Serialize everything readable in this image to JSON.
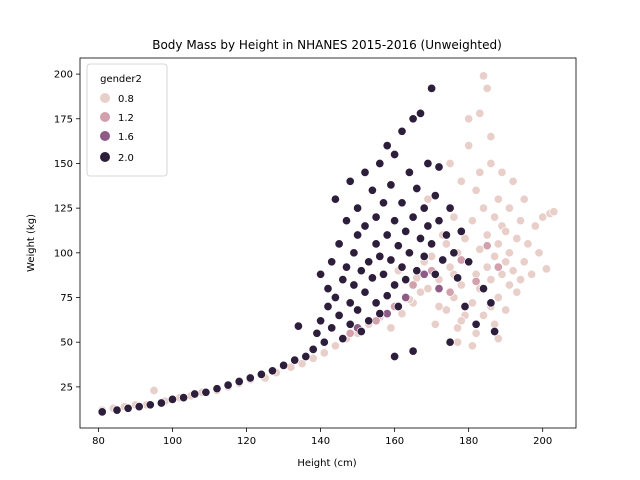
{
  "chart_data": {
    "type": "scatter",
    "title": "Body Mass by Height in NHANES 2015-2016 (Unweighted)",
    "xlabel": "Height (cm)",
    "ylabel": "Weight (kg)",
    "xlim": [
      75,
      209
    ],
    "ylim": [
      2,
      209
    ],
    "xticks": [
      80,
      100,
      120,
      140,
      160,
      180,
      200
    ],
    "yticks": [
      25,
      50,
      75,
      100,
      125,
      150,
      175,
      200
    ],
    "grid": false,
    "legend": {
      "title": "gender2",
      "placement": "top-left",
      "entries": [
        {
          "label": "0.8",
          "color": "#e9cfc9"
        },
        {
          "label": "1.2",
          "color": "#d3a0ad"
        },
        {
          "label": "1.6",
          "color": "#8e5a86"
        },
        {
          "label": "2.0",
          "color": "#2d1f3c"
        }
      ]
    },
    "series": [
      {
        "name": "0.8",
        "color": "#e9cfc9",
        "points": [
          [
            81,
            12
          ],
          [
            84,
            13
          ],
          [
            87,
            14
          ],
          [
            90,
            15
          ],
          [
            93,
            15
          ],
          [
            95,
            23
          ],
          [
            98,
            17
          ],
          [
            102,
            19
          ],
          [
            105,
            20
          ],
          [
            108,
            22
          ],
          [
            112,
            23
          ],
          [
            115,
            25
          ],
          [
            118,
            27
          ],
          [
            121,
            29
          ],
          [
            125,
            30
          ],
          [
            128,
            33
          ],
          [
            132,
            36
          ],
          [
            135,
            38
          ],
          [
            138,
            41
          ],
          [
            141,
            44
          ],
          [
            144,
            48
          ],
          [
            147,
            52
          ],
          [
            150,
            55
          ],
          [
            153,
            60
          ],
          [
            156,
            64
          ],
          [
            159,
            58
          ],
          [
            162,
            66
          ],
          [
            165,
            72
          ],
          [
            167,
            78
          ],
          [
            168,
            95
          ],
          [
            169,
            130
          ],
          [
            171,
            60
          ],
          [
            172,
            85
          ],
          [
            173,
            110
          ],
          [
            174,
            68
          ],
          [
            175,
            92
          ],
          [
            175,
            150
          ],
          [
            176,
            75
          ],
          [
            176,
            120
          ],
          [
            177,
            100
          ],
          [
            177,
            58
          ],
          [
            178,
            140
          ],
          [
            178,
            82
          ],
          [
            179,
            108
          ],
          [
            179,
            65
          ],
          [
            180,
            95
          ],
          [
            180,
            160
          ],
          [
            181,
            72
          ],
          [
            181,
            118
          ],
          [
            182,
            88
          ],
          [
            182,
            55
          ],
          [
            182,
            135
          ],
          [
            183,
            178
          ],
          [
            183,
            102
          ],
          [
            183,
            80
          ],
          [
            184,
            199
          ],
          [
            184,
            65
          ],
          [
            184,
            125
          ],
          [
            185,
            92
          ],
          [
            185,
            110
          ],
          [
            186,
            150
          ],
          [
            186,
            70
          ],
          [
            186,
            85
          ],
          [
            187,
            120
          ],
          [
            187,
            98
          ],
          [
            187,
            60
          ],
          [
            188,
            105
          ],
          [
            188,
            130
          ],
          [
            188,
            75
          ],
          [
            189,
            88
          ],
          [
            189,
            145
          ],
          [
            189,
            115
          ],
          [
            190,
            95
          ],
          [
            190,
            68
          ],
          [
            190,
            112
          ],
          [
            191,
            82
          ],
          [
            191,
            125
          ],
          [
            191,
            100
          ],
          [
            192,
            90
          ],
          [
            192,
            140
          ],
          [
            193,
            78
          ],
          [
            193,
            108
          ],
          [
            194,
            118
          ],
          [
            194,
            85
          ],
          [
            195,
            95
          ],
          [
            195,
            130
          ],
          [
            196,
            105
          ],
          [
            197,
            88
          ],
          [
            198,
            115
          ],
          [
            199,
            100
          ],
          [
            200,
            120
          ],
          [
            201,
            91
          ],
          [
            202,
            122
          ],
          [
            203,
            123
          ],
          [
            185,
            192
          ],
          [
            180,
            175
          ],
          [
            178,
            62
          ],
          [
            176,
            88
          ],
          [
            174,
            105
          ],
          [
            172,
            70
          ],
          [
            170,
            98
          ],
          [
            169,
            80
          ],
          [
            166,
            86
          ],
          [
            164,
            74
          ],
          [
            161,
            90
          ],
          [
            183,
            145
          ],
          [
            186,
            165
          ],
          [
            188,
            52
          ],
          [
            181,
            48
          ],
          [
            177,
            50
          ]
        ]
      },
      {
        "name": "1.2",
        "color": "#d3a0ad",
        "points": [
          [
            148,
            55
          ],
          [
            155,
            62
          ],
          [
            160,
            70
          ],
          [
            165,
            82
          ],
          [
            170,
            90
          ],
          [
            175,
            78
          ],
          [
            178,
            96
          ],
          [
            182,
            84
          ],
          [
            185,
            104
          ],
          [
            188,
            92
          ]
        ]
      },
      {
        "name": "1.6",
        "color": "#8e5a86",
        "points": [
          [
            150,
            58
          ],
          [
            158,
            66
          ],
          [
            163,
            75
          ],
          [
            168,
            88
          ],
          [
            172,
            80
          ]
        ]
      },
      {
        "name": "2.0",
        "color": "#2d1f3c",
        "points": [
          [
            81,
            11
          ],
          [
            85,
            12
          ],
          [
            88,
            13
          ],
          [
            91,
            14
          ],
          [
            94,
            15
          ],
          [
            97,
            16
          ],
          [
            100,
            18
          ],
          [
            103,
            19
          ],
          [
            106,
            21
          ],
          [
            109,
            22
          ],
          [
            112,
            24
          ],
          [
            115,
            26
          ],
          [
            118,
            28
          ],
          [
            121,
            30
          ],
          [
            124,
            32
          ],
          [
            127,
            34
          ],
          [
            130,
            37
          ],
          [
            133,
            40
          ],
          [
            134,
            59
          ],
          [
            136,
            42
          ],
          [
            138,
            46
          ],
          [
            139,
            55
          ],
          [
            140,
            62
          ],
          [
            140,
            88
          ],
          [
            141,
            50
          ],
          [
            142,
            70
          ],
          [
            142,
            80
          ],
          [
            143,
            95
          ],
          [
            143,
            58
          ],
          [
            144,
            75
          ],
          [
            144,
            130
          ],
          [
            145,
            65
          ],
          [
            145,
            105
          ],
          [
            146,
            85
          ],
          [
            146,
            52
          ],
          [
            147,
            118
          ],
          [
            147,
            92
          ],
          [
            148,
            72
          ],
          [
            148,
            60
          ],
          [
            148,
            140
          ],
          [
            149,
            100
          ],
          [
            149,
            82
          ],
          [
            150,
            110
          ],
          [
            150,
            68
          ],
          [
            150,
            125
          ],
          [
            151,
            90
          ],
          [
            151,
            56
          ],
          [
            152,
            78
          ],
          [
            152,
            145
          ],
          [
            152,
            115
          ],
          [
            153,
            95
          ],
          [
            153,
            62
          ],
          [
            154,
            135
          ],
          [
            154,
            86
          ],
          [
            155,
            120
          ],
          [
            155,
            72
          ],
          [
            155,
            105
          ],
          [
            156,
            98
          ],
          [
            156,
            150
          ],
          [
            156,
            66
          ],
          [
            157,
            88
          ],
          [
            157,
            128
          ],
          [
            158,
            110
          ],
          [
            158,
            76
          ],
          [
            158,
            160
          ],
          [
            159,
            96
          ],
          [
            159,
            138
          ],
          [
            160,
            82
          ],
          [
            160,
            118
          ],
          [
            160,
            155
          ],
          [
            161,
            104
          ],
          [
            161,
            70
          ],
          [
            162,
            128
          ],
          [
            162,
            92
          ],
          [
            162,
            168
          ],
          [
            163,
            112
          ],
          [
            163,
            85
          ],
          [
            164,
            145
          ],
          [
            164,
            100
          ],
          [
            165,
            120
          ],
          [
            165,
            175
          ],
          [
            166,
            90
          ],
          [
            166,
            136
          ],
          [
            167,
            108
          ],
          [
            167,
            178
          ],
          [
            168,
            125
          ],
          [
            168,
            98
          ],
          [
            169,
            150
          ],
          [
            169,
            115
          ],
          [
            170,
            192
          ],
          [
            170,
            105
          ],
          [
            171,
            132
          ],
          [
            171,
            88
          ],
          [
            172,
            118
          ],
          [
            172,
            148
          ],
          [
            173,
            96
          ],
          [
            174,
            110
          ],
          [
            175,
            125
          ],
          [
            176,
            100
          ],
          [
            177,
            86
          ],
          [
            178,
            112
          ],
          [
            179,
            70
          ],
          [
            180,
            95
          ],
          [
            182,
            60
          ],
          [
            184,
            80
          ],
          [
            186,
            72
          ],
          [
            187,
            56
          ],
          [
            175,
            50
          ],
          [
            165,
            45
          ],
          [
            160,
            42
          ]
        ]
      }
    ]
  }
}
